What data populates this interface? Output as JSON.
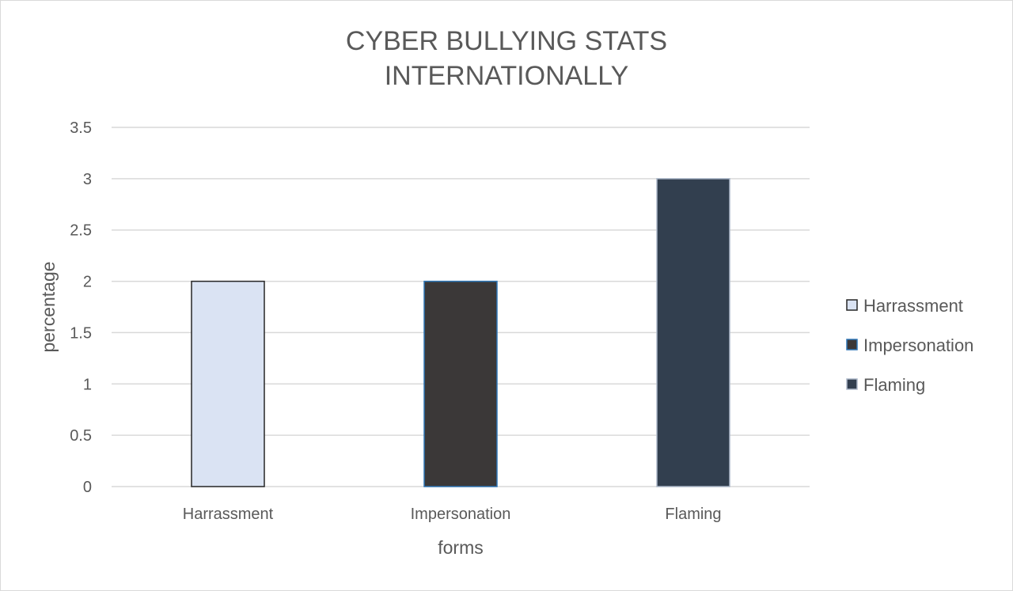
{
  "chart_data": {
    "type": "bar",
    "title_lines": [
      "CYBER BULLYING STATS",
      "INTERNATIONALLY"
    ],
    "xlabel": "forms",
    "ylabel": "percentage",
    "categories": [
      "Harrassment",
      "Impersonation",
      "Flaming"
    ],
    "values": [
      2,
      2,
      3
    ],
    "ylim": [
      0,
      3.5
    ],
    "ytick_values": [
      0,
      0.5,
      1,
      1.5,
      2,
      2.5,
      3,
      3.5
    ],
    "ytick_labels": [
      "0",
      "0.5",
      "1",
      "1.5",
      "2",
      "2.5",
      "3",
      "3.5"
    ],
    "colors": [
      "#dae3f3",
      "#3b3838",
      "#323f4f"
    ],
    "edge_colors": [
      "#262626",
      "#2e75b6",
      "#adb9ca"
    ],
    "gridlines": true,
    "legend_position": "right",
    "legend": [
      "Harrassment",
      "Impersonation",
      "Flaming"
    ]
  }
}
